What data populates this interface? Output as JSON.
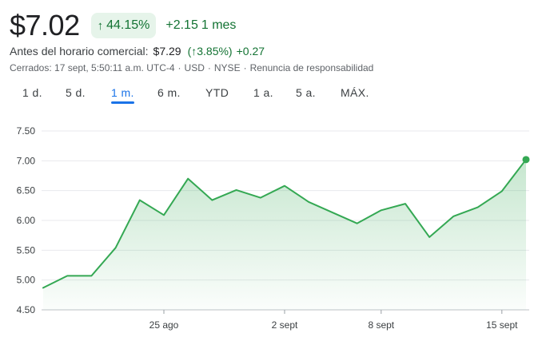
{
  "quote": {
    "price": "$7.02",
    "change_pct": "44.15%",
    "change_abs": "+2.15",
    "change_period": "1 mes",
    "up_arrow": "↑",
    "premarket_label": "Antes del horario comercial:",
    "premarket_price": "$7.29",
    "premarket_pct": "(↑3.85%)",
    "premarket_abs": "+0.27",
    "closed_text": "Cerrados: 17 sept, 5:50:11 a.m. UTC-4",
    "currency": "USD",
    "exchange": "NYSE",
    "disclaimer": "Renuncia de responsabilidad",
    "separator": "·"
  },
  "tabs": [
    {
      "label": "1 d.",
      "active": false
    },
    {
      "label": "5 d.",
      "active": false
    },
    {
      "label": "1 m.",
      "active": true
    },
    {
      "label": "6 m.",
      "active": false
    },
    {
      "label": "YTD",
      "active": false
    },
    {
      "label": "1 a.",
      "active": false
    },
    {
      "label": "5 a.",
      "active": false
    },
    {
      "label": "MÁX.",
      "active": false
    }
  ],
  "colors": {
    "up_green": "#137333",
    "line_green": "#34a853",
    "accent_blue": "#1a73e8",
    "grid": "#e8eaed"
  },
  "chart_data": {
    "type": "area",
    "x": [
      "Aug 16",
      "Aug 19",
      "Aug 20",
      "Aug 21",
      "Aug 22",
      "Aug 23",
      "Aug 26",
      "Aug 27",
      "Aug 28",
      "Aug 29",
      "Aug 30",
      "Sep 3",
      "Sep 4",
      "Sep 5",
      "Sep 6",
      "Sep 9",
      "Sep 10",
      "Sep 11",
      "Sep 12",
      "Sep 13",
      "Sep 16"
    ],
    "values": [
      4.87,
      5.07,
      5.07,
      5.54,
      6.34,
      6.09,
      6.7,
      6.34,
      6.51,
      6.38,
      6.58,
      6.31,
      6.13,
      5.95,
      6.17,
      6.28,
      5.72,
      6.07,
      6.22,
      6.49,
      7.02
    ],
    "ylim": [
      4.5,
      7.5
    ],
    "yticks": [
      "7.50",
      "7.00",
      "6.50",
      "6.00",
      "5.50",
      "5.00",
      "4.50"
    ],
    "ytick_values": [
      7.5,
      7.0,
      6.5,
      6.0,
      5.5,
      5.0,
      4.5
    ],
    "xticks": [
      {
        "label": "25 ago",
        "index": 5
      },
      {
        "label": "2 sept",
        "index": 10
      },
      {
        "label": "8 sept",
        "index": 14
      },
      {
        "label": "15 sept",
        "index": 19
      }
    ],
    "grid": true,
    "title": "",
    "xlabel": "",
    "ylabel": ""
  }
}
